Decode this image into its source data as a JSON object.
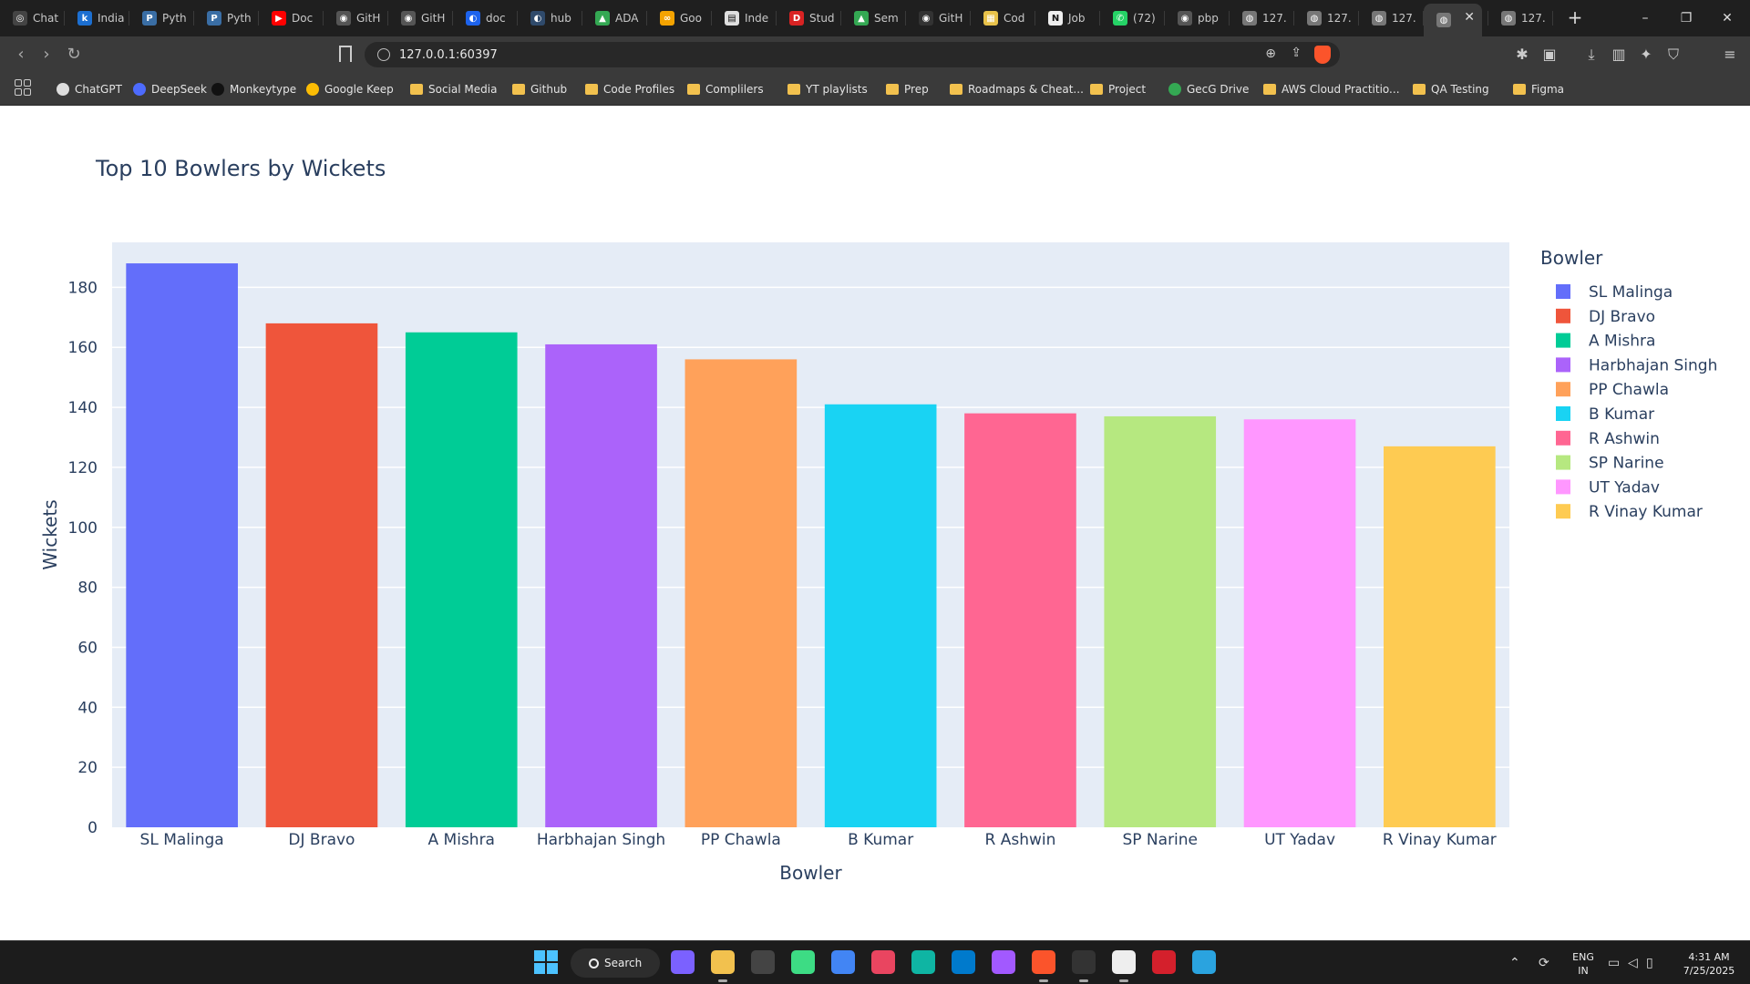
{
  "browser": {
    "tabs": [
      {
        "label": "Chat",
        "icon": "openai-icon",
        "color": "#444444",
        "glyph": "◎"
      },
      {
        "label": "India",
        "icon": "k-icon",
        "color": "#1c6fd1",
        "glyph": "k"
      },
      {
        "label": "Pyth",
        "icon": "python-icon",
        "color": "#3a6ea5",
        "glyph": "P"
      },
      {
        "label": "Pyth",
        "icon": "python-icon",
        "color": "#3a6ea5",
        "glyph": "P"
      },
      {
        "label": "Doc",
        "icon": "youtube-icon",
        "color": "#ff0000",
        "glyph": "▶"
      },
      {
        "label": "GitH",
        "icon": "github-icon",
        "color": "#555555",
        "glyph": "◉"
      },
      {
        "label": "GitH",
        "icon": "github-icon",
        "color": "#555555",
        "glyph": "◉"
      },
      {
        "label": "doc",
        "icon": "docker-icon",
        "color": "#1d63ed",
        "glyph": "◐"
      },
      {
        "label": "hub",
        "icon": "docker-hub-icon",
        "color": "#2f4a6b",
        "glyph": "◐"
      },
      {
        "label": "ADA",
        "icon": "drive-icon",
        "color": "#34a853",
        "glyph": "▲"
      },
      {
        "label": "Goo",
        "icon": "infinity-icon",
        "color": "#f4a300",
        "glyph": "∞"
      },
      {
        "label": "Inde",
        "icon": "page-icon",
        "color": "#e0e0e0",
        "glyph": "▤"
      },
      {
        "label": "Stud",
        "icon": "du-icon",
        "color": "#d92323",
        "glyph": "D"
      },
      {
        "label": "Sem",
        "icon": "drive-icon",
        "color": "#34a853",
        "glyph": "▲"
      },
      {
        "label": "GitH",
        "icon": "github-icon",
        "color": "#333333",
        "glyph": "◉"
      },
      {
        "label": "Cod",
        "icon": "notes-icon",
        "color": "#e8c24a",
        "glyph": "▦"
      },
      {
        "label": "Job",
        "icon": "notion-icon",
        "color": "#eeeeee",
        "glyph": "N"
      },
      {
        "label": "(72)",
        "icon": "whatsapp-icon",
        "color": "#25d366",
        "glyph": "✆"
      },
      {
        "label": "pbp",
        "icon": "github-icon",
        "color": "#555555",
        "glyph": "◉"
      },
      {
        "label": "127.",
        "icon": "globe-icon",
        "color": "#777777",
        "glyph": "◍"
      },
      {
        "label": "127.",
        "icon": "globe-icon",
        "color": "#777777",
        "glyph": "◍"
      },
      {
        "label": "127.",
        "icon": "globe-icon",
        "color": "#777777",
        "glyph": "◍"
      },
      {
        "label": "",
        "icon": "globe-icon",
        "color": "#777777",
        "glyph": "◍",
        "active": true
      },
      {
        "label": "127.",
        "icon": "globe-icon",
        "color": "#777777",
        "glyph": "◍"
      }
    ],
    "new_tab_glyph": "+",
    "window": {
      "minimize": "–",
      "restore": "❐",
      "close": "✕"
    },
    "url": "127.0.0.1:60397",
    "nav": {
      "back": "‹",
      "forward": "›",
      "reload": "↻"
    },
    "bookmarks": [
      {
        "label": "ChatGPT",
        "icon": "openai-icon",
        "color": "#dddddd"
      },
      {
        "label": "DeepSeek",
        "icon": "deepseek-icon",
        "color": "#4d6bfe"
      },
      {
        "label": "Monkeytype",
        "icon": "monkeytype-icon",
        "color": "#111111"
      },
      {
        "label": "Google Keep",
        "icon": "keep-icon",
        "color": "#fbbc04"
      },
      {
        "label": "Social Media",
        "icon": "folder-icon",
        "color": "#f2c14e"
      },
      {
        "label": "Github",
        "icon": "folder-icon",
        "color": "#f2c14e"
      },
      {
        "label": "Code Profiles",
        "icon": "folder-icon",
        "color": "#f2c14e"
      },
      {
        "label": "Complilers",
        "icon": "folder-icon",
        "color": "#f2c14e"
      },
      {
        "label": "YT playlists",
        "icon": "folder-icon",
        "color": "#f2c14e"
      },
      {
        "label": "Prep",
        "icon": "folder-icon",
        "color": "#f2c14e"
      },
      {
        "label": "Roadmaps & Cheat...",
        "icon": "folder-icon",
        "color": "#f2c14e"
      },
      {
        "label": "Project",
        "icon": "folder-icon",
        "color": "#f2c14e"
      },
      {
        "label": "GecG Drive",
        "icon": "drive-icon",
        "color": "#34a853"
      },
      {
        "label": "AWS Cloud Practitio...",
        "icon": "folder-icon",
        "color": "#f2c14e"
      },
      {
        "label": "QA Testing",
        "icon": "folder-icon",
        "color": "#f2c14e"
      },
      {
        "label": "Figma",
        "icon": "folder-icon",
        "color": "#f2c14e"
      }
    ]
  },
  "chart_data": {
    "type": "bar",
    "title": "Top 10 Bowlers by Wickets",
    "xlabel": "Bowler",
    "ylabel": "Wickets",
    "legend_title": "Bowler",
    "legend_position": "right",
    "ylim": [
      0,
      195
    ],
    "yticks": [
      0,
      20,
      40,
      60,
      80,
      100,
      120,
      140,
      160,
      180
    ],
    "grid": true,
    "plot_background": "#e5ecf6",
    "categories": [
      "SL Malinga",
      "DJ Bravo",
      "A Mishra",
      "Harbhajan Singh",
      "PP Chawla",
      "B Kumar",
      "R Ashwin",
      "SP Narine",
      "UT Yadav",
      "R Vinay Kumar"
    ],
    "values": [
      188,
      168,
      165,
      161,
      156,
      141,
      138,
      137,
      136,
      127
    ],
    "colors": [
      "#636efa",
      "#ef553b",
      "#00cc96",
      "#ab63fa",
      "#ffa15a",
      "#19d3f3",
      "#ff6692",
      "#b6e880",
      "#ff97ff",
      "#fecb52"
    ]
  },
  "taskbar": {
    "search_label": "Search",
    "apps": [
      {
        "icon": "copilot-icon",
        "color": "#7b61ff"
      },
      {
        "icon": "file-explorer-icon",
        "color": "#f2c14e"
      },
      {
        "icon": "unity-icon",
        "color": "#444444"
      },
      {
        "icon": "android-studio-icon",
        "color": "#3ddc84"
      },
      {
        "icon": "chrome-icon",
        "color": "#4285f4"
      },
      {
        "icon": "photos-icon",
        "color": "#e94560"
      },
      {
        "icon": "edge-icon",
        "color": "#0fb5a3"
      },
      {
        "icon": "vscode-icon",
        "color": "#007acc"
      },
      {
        "icon": "figma-icon",
        "color": "#a259ff"
      },
      {
        "icon": "brave-icon",
        "color": "#fb542b"
      },
      {
        "icon": "terminal-icon",
        "color": "#333333"
      },
      {
        "icon": "notion-icon",
        "color": "#eeeeee"
      },
      {
        "icon": "acrobat-icon",
        "color": "#d4202c"
      },
      {
        "icon": "telegram-icon",
        "color": "#2aa3df"
      }
    ],
    "language_line1": "ENG",
    "language_line2": "IN",
    "time": "4:31 AM",
    "date": "7/25/2025"
  }
}
